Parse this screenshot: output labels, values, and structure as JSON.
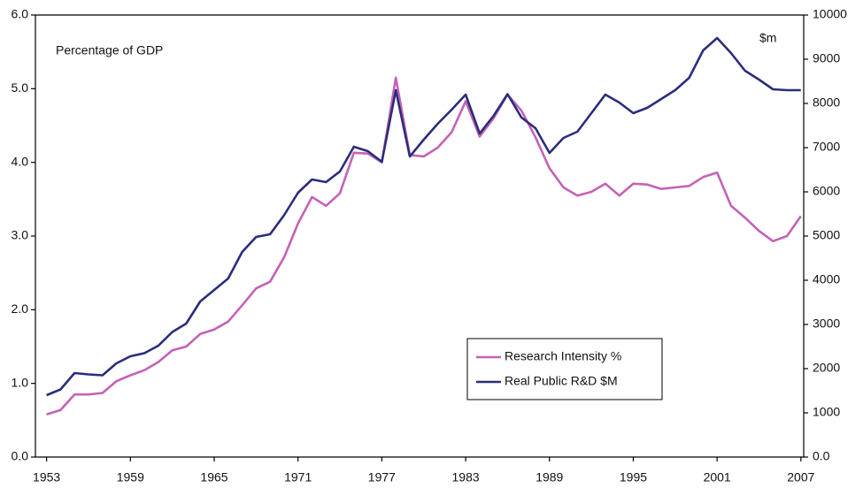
{
  "chart_data": {
    "type": "line",
    "annotations": [
      "Percentage of GDP",
      "$m"
    ],
    "x": [
      1953,
      1954,
      1955,
      1956,
      1957,
      1958,
      1959,
      1960,
      1961,
      1962,
      1963,
      1964,
      1965,
      1966,
      1967,
      1968,
      1969,
      1970,
      1971,
      1972,
      1973,
      1974,
      1975,
      1976,
      1977,
      1978,
      1979,
      1980,
      1981,
      1982,
      1983,
      1984,
      1985,
      1986,
      1987,
      1988,
      1989,
      1990,
      1991,
      1992,
      1993,
      1994,
      1995,
      1996,
      1997,
      1998,
      1999,
      2000,
      2001,
      2002,
      2003,
      2004,
      2005,
      2006,
      2007
    ],
    "xlim": [
      1952.2,
      2007.2
    ],
    "xticks": [
      1953,
      1959,
      1965,
      1971,
      1977,
      1983,
      1989,
      1995,
      2001,
      2007
    ],
    "ylim": [
      0,
      6
    ],
    "yticks": [
      {
        "value": 0,
        "label": "0.0"
      },
      {
        "value": 1,
        "label": "1.0"
      },
      {
        "value": 2,
        "label": "2.0"
      },
      {
        "value": 3,
        "label": "3.0"
      },
      {
        "value": 4,
        "label": "4.0"
      },
      {
        "value": 5,
        "label": "5.0"
      },
      {
        "value": 6,
        "label": "6.0"
      }
    ],
    "y2lim": [
      0,
      10000
    ],
    "y2ticks": [
      {
        "value": 0,
        "label": "0.0"
      },
      1000,
      2000,
      3000,
      4000,
      5000,
      6000,
      7000,
      8000,
      9000,
      10000
    ],
    "legend": "lower-right",
    "series": [
      {
        "name": "Research Intensity %",
        "color": "#c462b6",
        "values": [
          0.58,
          0.64,
          0.85,
          0.85,
          0.87,
          1.03,
          1.11,
          1.18,
          1.29,
          1.45,
          1.5,
          1.67,
          1.73,
          1.84,
          2.06,
          2.29,
          2.38,
          2.71,
          3.17,
          3.53,
          3.41,
          3.58,
          4.13,
          4.12,
          4.0,
          5.15,
          4.1,
          4.08,
          4.2,
          4.41,
          4.83,
          4.35,
          4.6,
          4.92,
          4.7,
          4.34,
          3.92,
          3.66,
          3.55,
          3.6,
          3.71,
          3.55,
          3.71,
          3.7,
          3.64,
          3.66,
          3.68,
          3.8,
          3.86,
          3.41,
          3.25,
          3.07,
          2.93,
          3.0,
          3.27
        ]
      },
      {
        "name": "Real Public R&D $M",
        "color": "#2b2d7c",
        "axis": "y2",
        "values": [
          1400,
          1530,
          1900,
          1870,
          1850,
          2120,
          2280,
          2350,
          2520,
          2830,
          3020,
          3520,
          3780,
          4040,
          4640,
          4980,
          5040,
          5470,
          5980,
          6280,
          6220,
          6460,
          7020,
          6920,
          6680,
          8300,
          6800,
          7180,
          7540,
          7860,
          8200,
          7320,
          7720,
          8210,
          7680,
          7440,
          6880,
          7220,
          7360,
          7780,
          8200,
          8020,
          7780,
          7900,
          8100,
          8300,
          8580,
          9200,
          9480,
          9140,
          8740,
          8540,
          8320,
          8300,
          8300
        ]
      }
    ]
  }
}
